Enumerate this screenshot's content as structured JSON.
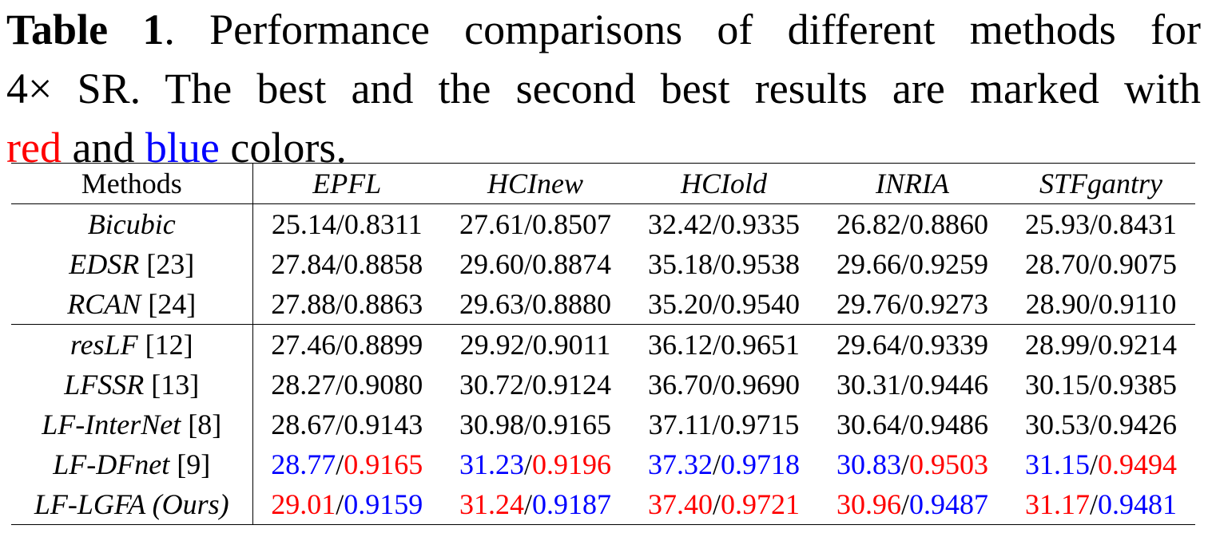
{
  "caption": {
    "label": "Table 1",
    "line1_rest": ".  Performance comparisons of different methods for",
    "line2": "4× SR. The best and the second best results are marked with",
    "line3_red": "red",
    "line3_mid": " and ",
    "line3_blue": "blue",
    "line3_end": " colors."
  },
  "colors": {
    "best": "#ff0000",
    "second_best": "#0000ff",
    "default": "#000000"
  },
  "table": {
    "header": {
      "methods": "Methods",
      "datasets": [
        "EPFL",
        "HCInew",
        "HCIold",
        "INRIA",
        "STFgantry"
      ]
    },
    "group_1": [
      {
        "name": "Bicubic",
        "ref": "",
        "cells": [
          {
            "psnr": "25.14",
            "ssim": "0.8311",
            "psnr_rank": "",
            "ssim_rank": ""
          },
          {
            "psnr": "27.61",
            "ssim": "0.8507",
            "psnr_rank": "",
            "ssim_rank": ""
          },
          {
            "psnr": "32.42",
            "ssim": "0.9335",
            "psnr_rank": "",
            "ssim_rank": ""
          },
          {
            "psnr": "26.82",
            "ssim": "0.8860",
            "psnr_rank": "",
            "ssim_rank": ""
          },
          {
            "psnr": "25.93",
            "ssim": "0.8431",
            "psnr_rank": "",
            "ssim_rank": ""
          }
        ]
      },
      {
        "name": "EDSR",
        "ref": "[23]",
        "cells": [
          {
            "psnr": "27.84",
            "ssim": "0.8858",
            "psnr_rank": "",
            "ssim_rank": ""
          },
          {
            "psnr": "29.60",
            "ssim": "0.8874",
            "psnr_rank": "",
            "ssim_rank": ""
          },
          {
            "psnr": "35.18",
            "ssim": "0.9538",
            "psnr_rank": "",
            "ssim_rank": ""
          },
          {
            "psnr": "29.66",
            "ssim": "0.9259",
            "psnr_rank": "",
            "ssim_rank": ""
          },
          {
            "psnr": "28.70",
            "ssim": "0.9075",
            "psnr_rank": "",
            "ssim_rank": ""
          }
        ]
      },
      {
        "name": "RCAN",
        "ref": "[24]",
        "cells": [
          {
            "psnr": "27.88",
            "ssim": "0.8863",
            "psnr_rank": "",
            "ssim_rank": ""
          },
          {
            "psnr": "29.63",
            "ssim": "0.8880",
            "psnr_rank": "",
            "ssim_rank": ""
          },
          {
            "psnr": "35.20",
            "ssim": "0.9540",
            "psnr_rank": "",
            "ssim_rank": ""
          },
          {
            "psnr": "29.76",
            "ssim": "0.9273",
            "psnr_rank": "",
            "ssim_rank": ""
          },
          {
            "psnr": "28.90",
            "ssim": "0.9110",
            "psnr_rank": "",
            "ssim_rank": ""
          }
        ]
      }
    ],
    "group_2": [
      {
        "name": "resLF",
        "ref": "[12]",
        "cells": [
          {
            "psnr": "27.46",
            "ssim": "0.8899",
            "psnr_rank": "",
            "ssim_rank": ""
          },
          {
            "psnr": "29.92",
            "ssim": "0.9011",
            "psnr_rank": "",
            "ssim_rank": ""
          },
          {
            "psnr": "36.12",
            "ssim": "0.9651",
            "psnr_rank": "",
            "ssim_rank": ""
          },
          {
            "psnr": "29.64",
            "ssim": "0.9339",
            "psnr_rank": "",
            "ssim_rank": ""
          },
          {
            "psnr": "28.99",
            "ssim": "0.9214",
            "psnr_rank": "",
            "ssim_rank": ""
          }
        ]
      },
      {
        "name": "LFSSR",
        "ref": "[13]",
        "cells": [
          {
            "psnr": "28.27",
            "ssim": "0.9080",
            "psnr_rank": "",
            "ssim_rank": ""
          },
          {
            "psnr": "30.72",
            "ssim": "0.9124",
            "psnr_rank": "",
            "ssim_rank": ""
          },
          {
            "psnr": "36.70",
            "ssim": "0.9690",
            "psnr_rank": "",
            "ssim_rank": ""
          },
          {
            "psnr": "30.31",
            "ssim": "0.9446",
            "psnr_rank": "",
            "ssim_rank": ""
          },
          {
            "psnr": "30.15",
            "ssim": "0.9385",
            "psnr_rank": "",
            "ssim_rank": ""
          }
        ]
      },
      {
        "name": "LF-InterNet",
        "ref": "[8]",
        "cells": [
          {
            "psnr": "28.67",
            "ssim": "0.9143",
            "psnr_rank": "",
            "ssim_rank": ""
          },
          {
            "psnr": "30.98",
            "ssim": "0.9165",
            "psnr_rank": "",
            "ssim_rank": ""
          },
          {
            "psnr": "37.11",
            "ssim": "0.9715",
            "psnr_rank": "",
            "ssim_rank": ""
          },
          {
            "psnr": "30.64",
            "ssim": "0.9486",
            "psnr_rank": "",
            "ssim_rank": ""
          },
          {
            "psnr": "30.53",
            "ssim": "0.9426",
            "psnr_rank": "",
            "ssim_rank": ""
          }
        ]
      },
      {
        "name": "LF-DFnet",
        "ref": "[9]",
        "cells": [
          {
            "psnr": "28.77",
            "ssim": "0.9165",
            "psnr_rank": "second",
            "ssim_rank": "best"
          },
          {
            "psnr": "31.23",
            "ssim": "0.9196",
            "psnr_rank": "second",
            "ssim_rank": "best"
          },
          {
            "psnr": "37.32",
            "ssim": "0.9718",
            "psnr_rank": "second",
            "ssim_rank": "second"
          },
          {
            "psnr": "30.83",
            "ssim": "0.9503",
            "psnr_rank": "second",
            "ssim_rank": "best"
          },
          {
            "psnr": "31.15",
            "ssim": "0.9494",
            "psnr_rank": "second",
            "ssim_rank": "best"
          }
        ]
      },
      {
        "name": "LF-LGFA (Ours)",
        "ref": "",
        "cells": [
          {
            "psnr": "29.01",
            "ssim": "0.9159",
            "psnr_rank": "best",
            "ssim_rank": "second"
          },
          {
            "psnr": "31.24",
            "ssim": "0.9187",
            "psnr_rank": "best",
            "ssim_rank": "second"
          },
          {
            "psnr": "37.40",
            "ssim": "0.9721",
            "psnr_rank": "best",
            "ssim_rank": "best"
          },
          {
            "psnr": "30.96",
            "ssim": "0.9487",
            "psnr_rank": "best",
            "ssim_rank": "second"
          },
          {
            "psnr": "31.17",
            "ssim": "0.9481",
            "psnr_rank": "best",
            "ssim_rank": "second"
          }
        ]
      }
    ]
  }
}
